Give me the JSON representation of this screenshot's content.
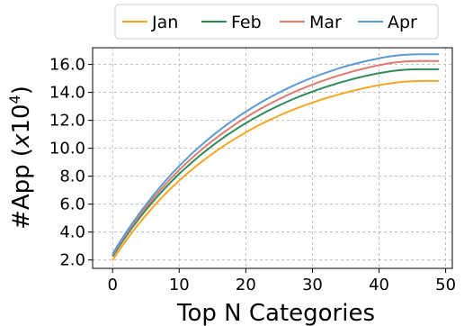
{
  "chart_data": {
    "type": "line",
    "xlabel": "Top N Categories",
    "ylabel_main": "#App (",
    "ylabel_x": "x",
    "ylabel_base": "10",
    "ylabel_exp": "4",
    "ylabel_close": ")",
    "xlim": [
      -3,
      51
    ],
    "ylim": [
      1.4,
      17.2
    ],
    "x_ticks": [
      0,
      10,
      20,
      30,
      40,
      50
    ],
    "x_tick_labels": [
      "0",
      "10",
      "20",
      "30",
      "40",
      "50"
    ],
    "y_ticks": [
      2,
      4,
      6,
      8,
      10,
      12,
      14,
      16
    ],
    "y_tick_labels": [
      "2.0",
      "4.0",
      "6.0",
      "8.0",
      "10.0",
      "12.0",
      "14.0",
      "16.0"
    ],
    "grid": true,
    "legend_position": "top-center-outside",
    "x": [
      0,
      1,
      2,
      3,
      4,
      5,
      6,
      7,
      8,
      9,
      10,
      11,
      12,
      13,
      14,
      15,
      16,
      17,
      18,
      19,
      20,
      21,
      22,
      23,
      24,
      25,
      26,
      27,
      28,
      29,
      30,
      31,
      32,
      33,
      34,
      35,
      36,
      37,
      38,
      39,
      40,
      41,
      42,
      43,
      44,
      45,
      46,
      47,
      48,
      49
    ],
    "series": [
      {
        "name": "Jan",
        "color": "#f5a623",
        "values": [
          2.0,
          2.71,
          3.38,
          4.02,
          4.63,
          5.2,
          5.75,
          6.27,
          6.77,
          7.24,
          7.69,
          8.11,
          8.51,
          8.9,
          9.26,
          9.61,
          9.95,
          10.27,
          10.57,
          10.86,
          11.14,
          11.41,
          11.66,
          11.9,
          12.12,
          12.34,
          12.55,
          12.74,
          12.93,
          13.1,
          13.27,
          13.43,
          13.58,
          13.72,
          13.86,
          13.99,
          14.11,
          14.22,
          14.33,
          14.43,
          14.52,
          14.6,
          14.67,
          14.73,
          14.77,
          14.8,
          14.81,
          14.82,
          14.82,
          14.82
        ]
      },
      {
        "name": "Feb",
        "color": "#2e8b57",
        "values": [
          2.25,
          2.98,
          3.68,
          4.35,
          4.98,
          5.58,
          6.15,
          6.69,
          7.21,
          7.7,
          8.17,
          8.61,
          9.03,
          9.44,
          9.82,
          10.19,
          10.54,
          10.88,
          11.2,
          11.51,
          11.8,
          12.08,
          12.34,
          12.6,
          12.84,
          13.07,
          13.29,
          13.5,
          13.7,
          13.88,
          14.06,
          14.23,
          14.39,
          14.54,
          14.69,
          14.82,
          14.95,
          15.07,
          15.18,
          15.28,
          15.38,
          15.46,
          15.53,
          15.59,
          15.63,
          15.65,
          15.66,
          15.66,
          15.66,
          15.66
        ]
      },
      {
        "name": "Mar",
        "color": "#e07a6e",
        "values": [
          2.35,
          3.1,
          3.82,
          4.5,
          5.15,
          5.77,
          6.36,
          6.92,
          7.45,
          7.96,
          8.44,
          8.9,
          9.34,
          9.76,
          10.16,
          10.54,
          10.9,
          11.25,
          11.58,
          11.9,
          12.2,
          12.49,
          12.77,
          13.03,
          13.28,
          13.52,
          13.75,
          13.97,
          14.18,
          14.37,
          14.56,
          14.74,
          14.91,
          15.07,
          15.22,
          15.36,
          15.5,
          15.62,
          15.74,
          15.85,
          15.95,
          16.04,
          16.12,
          16.18,
          16.22,
          16.24,
          16.25,
          16.25,
          16.25,
          16.25
        ]
      },
      {
        "name": "Apr",
        "color": "#5b9bd5",
        "values": [
          2.45,
          3.22,
          3.95,
          4.65,
          5.32,
          5.96,
          6.57,
          7.15,
          7.7,
          8.23,
          8.73,
          9.2,
          9.66,
          10.09,
          10.5,
          10.9,
          11.28,
          11.64,
          11.98,
          12.31,
          12.62,
          12.92,
          13.21,
          13.48,
          13.74,
          13.99,
          14.23,
          14.46,
          14.67,
          14.87,
          15.06,
          15.24,
          15.41,
          15.57,
          15.73,
          15.87,
          16.0,
          16.12,
          16.24,
          16.34,
          16.44,
          16.53,
          16.6,
          16.66,
          16.7,
          16.72,
          16.73,
          16.73,
          16.73,
          16.73
        ]
      }
    ]
  }
}
